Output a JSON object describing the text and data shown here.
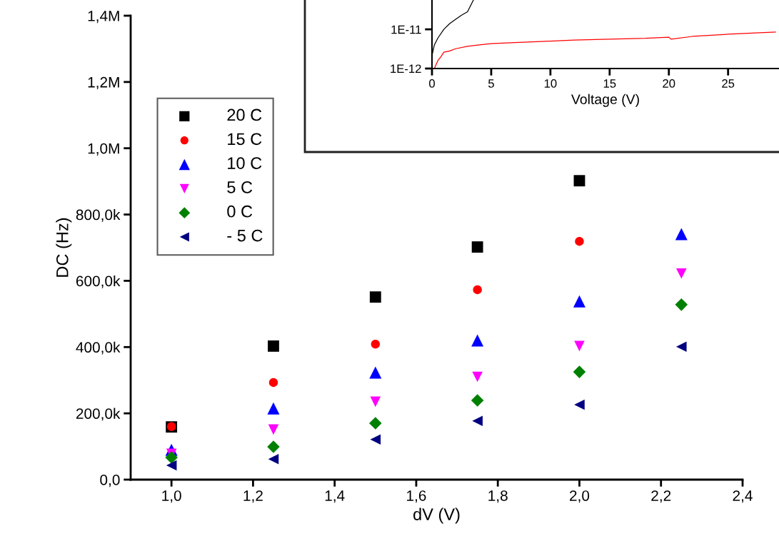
{
  "chart_data": [
    {
      "type": "scatter",
      "xlabel": "dV (V)",
      "ylabel": "DC (Hz)",
      "x": [
        1.0,
        1.25,
        1.5,
        1.75,
        2.0,
        2.25
      ],
      "xlim": [
        0.9,
        2.4
      ],
      "xticks": [
        {
          "value": 1.0,
          "label": "1,0"
        },
        {
          "value": 1.2,
          "label": "1,2"
        },
        {
          "value": 1.4,
          "label": "1,4"
        },
        {
          "value": 1.6,
          "label": "1,6"
        },
        {
          "value": 1.8,
          "label": "1,8"
        },
        {
          "value": 2.0,
          "label": "2,0"
        },
        {
          "value": 2.2,
          "label": "2,2"
        },
        {
          "value": 2.4,
          "label": "2,4"
        }
      ],
      "ylim": [
        0,
        1400000
      ],
      "yticks": [
        {
          "value": 0,
          "label": "0,0"
        },
        {
          "value": 200000,
          "label": "200,0k"
        },
        {
          "value": 400000,
          "label": "400,0k"
        },
        {
          "value": 600000,
          "label": "600,0k"
        },
        {
          "value": 800000,
          "label": "800,0k"
        },
        {
          "value": 1000000,
          "label": "1,0M"
        },
        {
          "value": 1200000,
          "label": "1,2M"
        },
        {
          "value": 1400000,
          "label": "1,4M"
        }
      ],
      "grid": false,
      "legend": "top left",
      "series": [
        {
          "name": "20 C",
          "color": "#000000",
          "marker": "square",
          "values": [
            159000,
            403000,
            551000,
            702000,
            902000,
            null
          ]
        },
        {
          "name": "15 C",
          "color": "#ff0000",
          "marker": "circle",
          "values": [
            160000,
            293000,
            409000,
            573000,
            719000,
            null
          ]
        },
        {
          "name": "10 C",
          "color": "#0000ff",
          "marker": "triangle",
          "values": [
            90000,
            215000,
            323000,
            420000,
            538000,
            741000
          ]
        },
        {
          "name": "5 C",
          "color": "#ff00ff",
          "marker": "triangle_down",
          "values": [
            78000,
            151000,
            235000,
            310000,
            403000,
            622000
          ]
        },
        {
          "name": "0 C",
          "color": "#008000",
          "marker": "diamond",
          "values": [
            67000,
            99000,
            170000,
            239000,
            325000,
            528000
          ]
        },
        {
          "name": "- 5 C",
          "color": "#000080",
          "marker": "triangle_left",
          "values": [
            43000,
            62000,
            121000,
            177000,
            226000,
            401000
          ]
        }
      ]
    },
    {
      "type": "line",
      "xlabel": "Voltage (V)",
      "log": "y",
      "xlim": [
        0,
        29.3
      ],
      "xticks": [
        0,
        5,
        10,
        15,
        20,
        25
      ],
      "ylim": [
        1e-12,
        5.6e-11
      ],
      "yticks": [
        {
          "value": 1e-12,
          "label": "1E-12"
        },
        {
          "value": 1e-11,
          "label": "1E-11"
        }
      ],
      "grid": false,
      "legend": false,
      "marker": "none",
      "line_style": "solid",
      "series": [
        {
          "color": "#000000",
          "x": [
            0.05,
            0.2,
            0.5,
            1,
            1.5,
            2,
            2.5,
            3,
            3.5
          ],
          "values": [
            2.5e-12,
            4e-12,
            6e-12,
            1e-11,
            1.4e-11,
            1.8e-11,
            2.3e-11,
            2.8e-11,
            5.6e-11
          ]
        },
        {
          "color": "#ff0000",
          "x": [
            0.2,
            0.5,
            0.8,
            1,
            1.5,
            2,
            3,
            4,
            5,
            7,
            10,
            12,
            15,
            18,
            20,
            20.2,
            22,
            25,
            27,
            29
          ],
          "values": [
            1e-12,
            1.6e-12,
            2.1e-12,
            2.6e-12,
            2.8e-12,
            3.2e-12,
            3.7e-12,
            4e-12,
            4.3e-12,
            4.6e-12,
            5e-12,
            5.3e-12,
            5.6e-12,
            5.9e-12,
            6.3e-12,
            5.6e-12,
            6.6e-12,
            7.5e-12,
            8e-12,
            8.5e-12
          ]
        }
      ]
    }
  ]
}
